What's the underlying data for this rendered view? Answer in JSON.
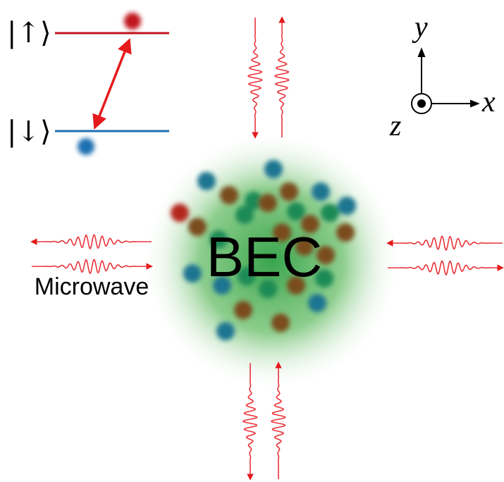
{
  "states": {
    "up": "|↑⟩",
    "down": "|↓⟩"
  },
  "axes": {
    "y": "y",
    "x": "x",
    "z": "z"
  },
  "center_label": "BEC",
  "source_label": "Microwave"
}
